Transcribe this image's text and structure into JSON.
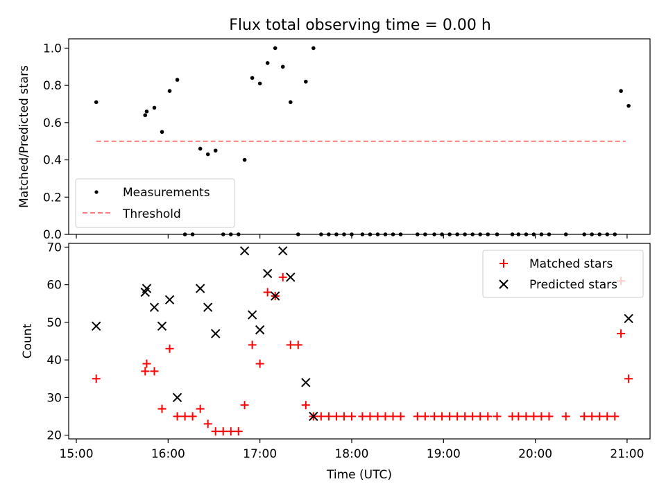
{
  "title": "Flux total observing time = 0.00 h",
  "x_axis": {
    "label": "Time (UTC)",
    "ticks": [
      "15:00",
      "16:00",
      "17:00",
      "18:00",
      "19:00",
      "20:00",
      "21:00"
    ],
    "range": [
      "14:55",
      "21:15"
    ]
  },
  "chart_data": [
    {
      "type": "scatter",
      "ylabel": "Matched/Predicted stars",
      "ylim": [
        0,
        1.05
      ],
      "yticks": [
        "0.0",
        "0.2",
        "0.4",
        "0.6",
        "0.8",
        "1.0"
      ],
      "legend": {
        "placement": "lower-left",
        "items": [
          "Measurements",
          "Threshold"
        ]
      },
      "series": [
        {
          "name": "Measurements",
          "marker": "dot",
          "color": "#000000",
          "points": [
            [
              "15:13",
              0.71
            ],
            [
              "15:45",
              0.64
            ],
            [
              "15:46",
              0.66
            ],
            [
              "15:51",
              0.68
            ],
            [
              "15:56",
              0.55
            ],
            [
              "16:01",
              0.77
            ],
            [
              "16:06",
              0.83
            ],
            [
              "16:11",
              0.0
            ],
            [
              "16:16",
              0.0
            ],
            [
              "16:21",
              0.46
            ],
            [
              "16:26",
              0.43
            ],
            [
              "16:31",
              0.45
            ],
            [
              "16:36",
              0.0
            ],
            [
              "16:41",
              0.0
            ],
            [
              "16:46",
              0.0
            ],
            [
              "16:50",
              0.4
            ],
            [
              "16:55",
              0.84
            ],
            [
              "17:00",
              0.81
            ],
            [
              "17:05",
              0.92
            ],
            [
              "17:10",
              1.0
            ],
            [
              "17:15",
              0.9
            ],
            [
              "17:20",
              0.71
            ],
            [
              "17:25",
              0.0
            ],
            [
              "17:30",
              0.82
            ],
            [
              "17:35",
              1.0
            ],
            [
              "17:40",
              0.0
            ],
            [
              "17:45",
              0.0
            ],
            [
              "17:50",
              0.0
            ],
            [
              "17:55",
              0.0
            ],
            [
              "18:00",
              0.0
            ],
            [
              "18:07",
              0.0
            ],
            [
              "18:12",
              0.0
            ],
            [
              "18:17",
              0.0
            ],
            [
              "18:22",
              0.0
            ],
            [
              "18:27",
              0.0
            ],
            [
              "18:32",
              0.0
            ],
            [
              "18:43",
              0.0
            ],
            [
              "18:48",
              0.0
            ],
            [
              "18:54",
              0.0
            ],
            [
              "18:59",
              0.0
            ],
            [
              "19:04",
              0.0
            ],
            [
              "19:09",
              0.0
            ],
            [
              "19:14",
              0.0
            ],
            [
              "19:19",
              0.0
            ],
            [
              "19:24",
              0.0
            ],
            [
              "19:29",
              0.0
            ],
            [
              "19:35",
              0.0
            ],
            [
              "19:45",
              0.0
            ],
            [
              "19:49",
              0.0
            ],
            [
              "19:54",
              0.0
            ],
            [
              "19:59",
              0.0
            ],
            [
              "20:04",
              0.0
            ],
            [
              "20:09",
              0.0
            ],
            [
              "20:20",
              0.0
            ],
            [
              "20:32",
              0.0
            ],
            [
              "20:37",
              0.0
            ],
            [
              "20:42",
              0.0
            ],
            [
              "20:47",
              0.0
            ],
            [
              "20:52",
              0.0
            ],
            [
              "20:56",
              0.77
            ],
            [
              "21:01",
              0.69
            ]
          ]
        },
        {
          "name": "Threshold",
          "marker": "dashed-line",
          "color": "#ff7a7a",
          "points": [
            [
              "15:13",
              0.5
            ],
            [
              "20:59",
              0.5
            ]
          ]
        }
      ]
    },
    {
      "type": "scatter",
      "ylabel": "Count",
      "ylim": [
        19,
        71
      ],
      "yticks": [
        "20",
        "30",
        "40",
        "50",
        "60",
        "70"
      ],
      "legend": {
        "placement": "top-right",
        "items": [
          "Matched stars",
          "Predicted stars"
        ]
      },
      "series": [
        {
          "name": "Matched stars",
          "marker": "plus",
          "color": "#ff0000",
          "points": [
            [
              "15:13",
              35
            ],
            [
              "15:45",
              37
            ],
            [
              "15:46",
              39
            ],
            [
              "15:51",
              37
            ],
            [
              "15:56",
              27
            ],
            [
              "16:01",
              43
            ],
            [
              "16:06",
              25
            ],
            [
              "16:11",
              25
            ],
            [
              "16:16",
              25
            ],
            [
              "16:21",
              27
            ],
            [
              "16:26",
              23
            ],
            [
              "16:31",
              21
            ],
            [
              "16:36",
              21
            ],
            [
              "16:41",
              21
            ],
            [
              "16:46",
              21
            ],
            [
              "16:50",
              28
            ],
            [
              "16:55",
              44
            ],
            [
              "17:00",
              39
            ],
            [
              "17:05",
              58
            ],
            [
              "17:10",
              57
            ],
            [
              "17:15",
              62
            ],
            [
              "17:20",
              44
            ],
            [
              "17:25",
              44
            ],
            [
              "17:30",
              28
            ],
            [
              "17:35",
              25
            ],
            [
              "17:40",
              25
            ],
            [
              "17:45",
              25
            ],
            [
              "17:50",
              25
            ],
            [
              "17:55",
              25
            ],
            [
              "18:00",
              25
            ],
            [
              "18:07",
              25
            ],
            [
              "18:12",
              25
            ],
            [
              "18:17",
              25
            ],
            [
              "18:22",
              25
            ],
            [
              "18:27",
              25
            ],
            [
              "18:32",
              25
            ],
            [
              "18:43",
              25
            ],
            [
              "18:48",
              25
            ],
            [
              "18:54",
              25
            ],
            [
              "18:59",
              25
            ],
            [
              "19:04",
              25
            ],
            [
              "19:09",
              25
            ],
            [
              "19:14",
              25
            ],
            [
              "19:19",
              25
            ],
            [
              "19:24",
              25
            ],
            [
              "19:29",
              25
            ],
            [
              "19:35",
              25
            ],
            [
              "19:45",
              25
            ],
            [
              "19:49",
              25
            ],
            [
              "19:54",
              25
            ],
            [
              "19:59",
              25
            ],
            [
              "20:04",
              25
            ],
            [
              "20:09",
              25
            ],
            [
              "20:20",
              25
            ],
            [
              "20:32",
              25
            ],
            [
              "20:37",
              25
            ],
            [
              "20:42",
              25
            ],
            [
              "20:47",
              25
            ],
            [
              "20:52",
              25
            ],
            [
              "20:56",
              47
            ],
            [
              "20:56",
              61
            ],
            [
              "21:01",
              35
            ]
          ]
        },
        {
          "name": "Predicted stars",
          "marker": "x",
          "color": "#000000",
          "points": [
            [
              "15:13",
              49
            ],
            [
              "15:45",
              58
            ],
            [
              "15:46",
              59
            ],
            [
              "15:51",
              54
            ],
            [
              "15:56",
              49
            ],
            [
              "16:01",
              56
            ],
            [
              "16:06",
              30
            ],
            [
              "16:21",
              59
            ],
            [
              "16:26",
              54
            ],
            [
              "16:31",
              47
            ],
            [
              "16:50",
              69
            ],
            [
              "16:55",
              52
            ],
            [
              "17:00",
              48
            ],
            [
              "17:05",
              63
            ],
            [
              "17:10",
              57
            ],
            [
              "17:15",
              69
            ],
            [
              "17:20",
              62
            ],
            [
              "17:30",
              34
            ],
            [
              "17:35",
              25
            ],
            [
              "21:01",
              51
            ]
          ]
        }
      ]
    }
  ]
}
